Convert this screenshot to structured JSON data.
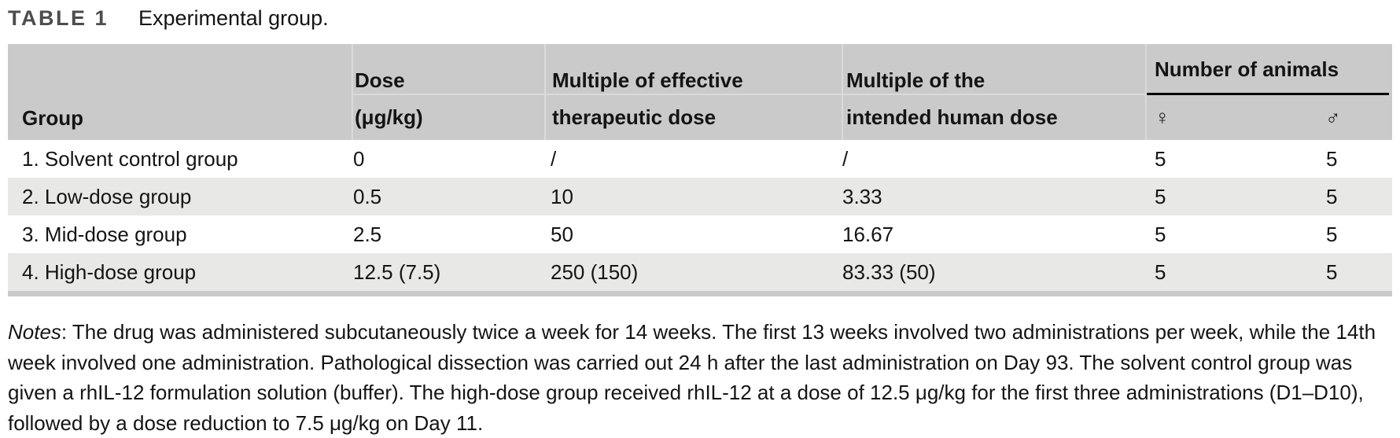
{
  "title": {
    "label": "TABLE 1",
    "caption": "Experimental group."
  },
  "table": {
    "columns": {
      "group": "Group",
      "dose_line1": "Dose",
      "dose_line2": "(μg/kg)",
      "mult_eff_line1": "Multiple of effective",
      "mult_eff_line2": "therapeutic dose",
      "mult_int_line1": "Multiple of the",
      "mult_int_line2": "intended human dose",
      "animals_group": "Number of animals",
      "female": "♀",
      "male": "♂"
    },
    "rows": [
      {
        "group": "1. Solvent control group",
        "dose": "0",
        "mult_eff": "/",
        "mult_int": "/",
        "female": "5",
        "male": "5"
      },
      {
        "group": "2. Low-dose group",
        "dose": "0.5",
        "mult_eff": "10",
        "mult_int": "3.33",
        "female": "5",
        "male": "5"
      },
      {
        "group": "3. Mid-dose group",
        "dose": "2.5",
        "mult_eff": "50",
        "mult_int": "16.67",
        "female": "5",
        "male": "5"
      },
      {
        "group": "4. High-dose group",
        "dose": "12.5 (7.5)",
        "mult_eff": "250 (150)",
        "mult_int": "83.33 (50)",
        "female": "5",
        "male": "5"
      }
    ]
  },
  "notes": {
    "label": "Notes",
    "text": ": The drug was administered subcutaneously twice a week for 14 weeks. The first 13 weeks involved two administrations per week, while the 14th week involved one administration. Pathological dissection was carried out 24 h after the last administration on Day 93. The solvent control group was given a rhIL-12 formulation solution (buffer). The high-dose group received rhIL-12 at a dose of 12.5 μg/kg for the first three administrations (D1–D10), followed by a dose reduction to 7.5 μg/kg on Day 11."
  },
  "colors": {
    "header-bg": "#cacaca",
    "alt-row-bg": "#e8e8e6",
    "bottom-strip": "#c9c9c9",
    "faint-line": "#dadada",
    "rule": "#000000",
    "title-gray": "#4d4d4d",
    "text": "#141414"
  }
}
